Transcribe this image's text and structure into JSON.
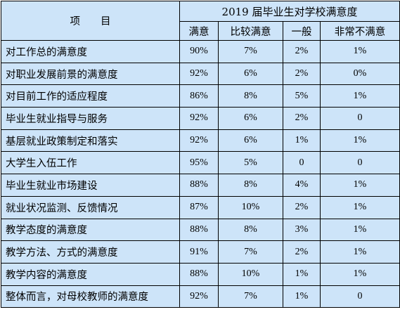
{
  "table": {
    "header_item": "项　　目",
    "header_title": "2019 届毕业生对学校满意度",
    "columns": [
      "满意",
      "比较满意",
      "一般",
      "非常不满意"
    ],
    "rows": [
      {
        "item": "对工作总的满意度",
        "values": [
          "90%",
          "7%",
          "2%",
          "1%"
        ]
      },
      {
        "item": "对职业发展前景的满意度",
        "values": [
          "92%",
          "6%",
          "2%",
          "0%"
        ]
      },
      {
        "item": "对目前工作的适应程度",
        "values": [
          "86%",
          "8%",
          "5%",
          "1%"
        ]
      },
      {
        "item": "毕业生就业指导与服务",
        "values": [
          "92%",
          "6%",
          "2%",
          "0"
        ]
      },
      {
        "item": "基层就业政策制定和落实",
        "values": [
          "92%",
          "6%",
          "1%",
          "1%"
        ]
      },
      {
        "item": "大学生入伍工作",
        "values": [
          "95%",
          "5%",
          "0",
          "0"
        ]
      },
      {
        "item": "毕业生就业市场建设",
        "values": [
          "88%",
          "8%",
          "4%",
          "1%"
        ]
      },
      {
        "item": "就业状况监测、反馈情况",
        "values": [
          "87%",
          "10%",
          "2%",
          "1%"
        ]
      },
      {
        "item": "教学态度的满意度",
        "values": [
          "88%",
          "8%",
          "3%",
          "1%"
        ]
      },
      {
        "item": "教学方法、方式的满意度",
        "values": [
          "91%",
          "7%",
          "2%",
          "1%"
        ]
      },
      {
        "item": "教学内容的满意度",
        "values": [
          "88%",
          "10%",
          "1%",
          "1%"
        ]
      },
      {
        "item": "整体而言，对母校教师的满意度",
        "values": [
          "92%",
          "7%",
          "1%",
          "0"
        ]
      }
    ]
  }
}
